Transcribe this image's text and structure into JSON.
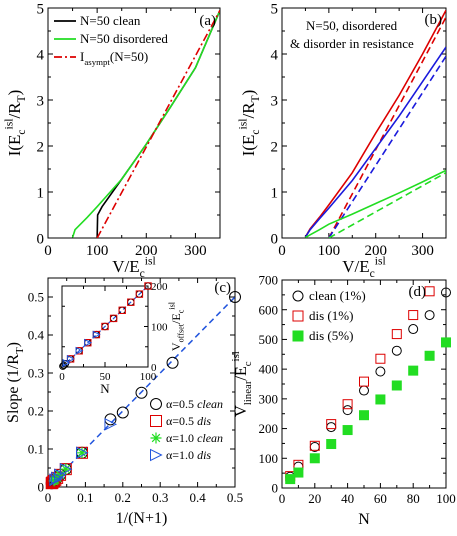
{
  "chart_data": [
    {
      "panel_label": "(a)",
      "type": "line",
      "xlabel": "V/E",
      "xlabel_sub": "c",
      "xlabel_sup": "isl",
      "ylabel": "I(E",
      "ylabel_sub": "c",
      "ylabel_sup": "isl",
      "ylabel_tail": "/R",
      "ylabel_tail_sub": "T",
      "ylabel_close": ")",
      "xlim": [
        0,
        350
      ],
      "ylim": [
        0,
        5
      ],
      "xticks": [
        0,
        100,
        200,
        300
      ],
      "yticks": [
        0,
        1,
        2,
        3,
        4,
        5
      ],
      "legend_position": "top-left",
      "legend": [
        {
          "label": "N=50 clean",
          "color": "#000000",
          "dash": "solid"
        },
        {
          "label": "N=50 disordered",
          "color": "#22dd22",
          "dash": "solid"
        },
        {
          "label": "I",
          "label_sub": "asympt",
          "label_tail": "(N=50)",
          "color": "#dd0000",
          "dash": "dashdot"
        }
      ],
      "series": [
        {
          "name": "N=50 clean",
          "color": "#000000",
          "dash": "solid",
          "x": [
            100,
            101,
            110,
            150,
            200,
            250,
            300,
            350
          ],
          "y": [
            0,
            0.5,
            0.68,
            1.28,
            2.04,
            2.86,
            3.7,
            4.95
          ]
        },
        {
          "name": "N=50 disordered",
          "color": "#22dd22",
          "dash": "solid",
          "x": [
            50,
            55,
            80,
            100,
            150,
            200,
            250,
            300,
            350
          ],
          "y": [
            0.01,
            0.18,
            0.45,
            0.68,
            1.28,
            2.04,
            2.86,
            3.7,
            4.95
          ]
        },
        {
          "name": "I",
          "color": "#dd0000",
          "dash": "dashdot",
          "x": [
            100,
            350
          ],
          "y": [
            0,
            4.95
          ]
        }
      ]
    },
    {
      "panel_label": "(b)",
      "type": "line",
      "annotation_line1": "N=50, disordered",
      "annotation_line2": "& disorder in resistance",
      "xlabel": "V/E",
      "xlabel_sub": "c",
      "xlabel_sup": "isl",
      "ylabel": "I(E",
      "ylabel_sub": "c",
      "ylabel_sup": "isl",
      "ylabel_tail": "/R",
      "ylabel_tail_sub": "T",
      "ylabel_close": ")",
      "xlim": [
        0,
        350
      ],
      "ylim": [
        0,
        5
      ],
      "xticks": [
        0,
        100,
        200,
        300
      ],
      "yticks": [
        0,
        1,
        2,
        3,
        4,
        5
      ],
      "series": [
        {
          "color": "#dd0000",
          "dash": "solid",
          "x": [
            50,
            60,
            80,
            100,
            150,
            200,
            250,
            300,
            350
          ],
          "y": [
            0.02,
            0.2,
            0.45,
            0.72,
            1.42,
            2.28,
            3.1,
            4.0,
            4.95
          ]
        },
        {
          "color": "#dd0000",
          "dash": "dashed",
          "x": [
            100,
            350
          ],
          "y": [
            0,
            4.8
          ]
        },
        {
          "color": "#1a1adc",
          "dash": "solid",
          "x": [
            50,
            60,
            80,
            100,
            150,
            200,
            250,
            300,
            350
          ],
          "y": [
            0.02,
            0.18,
            0.42,
            0.65,
            1.25,
            1.95,
            2.65,
            3.4,
            4.15
          ]
        },
        {
          "color": "#1a1adc",
          "dash": "dashed",
          "x": [
            100,
            350
          ],
          "y": [
            0,
            3.95
          ]
        },
        {
          "color": "#22dd22",
          "dash": "solid",
          "x": [
            50,
            60,
            80,
            100,
            150,
            200,
            250,
            300,
            350
          ],
          "y": [
            0.01,
            0.07,
            0.18,
            0.3,
            0.52,
            0.75,
            0.98,
            1.22,
            1.47
          ]
        },
        {
          "color": "#22dd22",
          "dash": "dashed",
          "x": [
            100,
            350
          ],
          "y": [
            0,
            1.42
          ]
        }
      ]
    },
    {
      "panel_label": "(c)",
      "type": "scatter",
      "xlabel": "1/(N+1)",
      "ylabel": "Slope (1/R",
      "ylabel_sub": "T",
      "ylabel_close": ")",
      "xlim": [
        0,
        0.5
      ],
      "ylim": [
        0,
        0.55
      ],
      "xticks": [
        0,
        0.1,
        0.2,
        0.3,
        0.4,
        0.5
      ],
      "xtick_labels": [
        "0",
        "0.1",
        "0.2",
        "0.3",
        "0.4",
        "0.5"
      ],
      "yticks": [
        0,
        0.1,
        0.2,
        0.3,
        0.4,
        0.5
      ],
      "ytick_labels": [
        "0",
        "0.1",
        "0.2",
        "0.3",
        "0.4",
        "0.5"
      ],
      "legend_position": "bottom-right",
      "fit_line": {
        "color": "#2255dd",
        "dash": "dashed",
        "x": [
          0,
          0.5
        ],
        "y": [
          0,
          0.5
        ]
      },
      "legend": [
        {
          "alpha": "α=0.5",
          "tag": "clean",
          "marker": "circle",
          "color": "#000000"
        },
        {
          "alpha": "α=0.5",
          "tag": "dis",
          "marker": "square",
          "color": "#dd0000"
        },
        {
          "alpha": "α=1.0",
          "tag": "clean",
          "marker": "star",
          "color": "#22dd22"
        },
        {
          "alpha": "α=1.0",
          "tag": "dis",
          "marker": "triangle",
          "color": "#2255dd"
        }
      ],
      "series": [
        {
          "name": "α=0.5 clean",
          "marker": "circle",
          "color": "#000000",
          "x": [
            0.5,
            0.333,
            0.25,
            0.2,
            0.167,
            0.0909,
            0.0476,
            0.0323,
            0.0244,
            0.0196,
            0.0164,
            0.0141,
            0.0123,
            0.011,
            0.0099
          ],
          "y": [
            0.5,
            0.327,
            0.248,
            0.196,
            0.178,
            0.09,
            0.047,
            0.032,
            0.024,
            0.019,
            0.016,
            0.014,
            0.012,
            0.011,
            0.01
          ]
        },
        {
          "name": "α=0.5 dis",
          "marker": "square",
          "color": "#dd0000",
          "x": [
            0.0909,
            0.0476,
            0.0323,
            0.0244,
            0.0196,
            0.0164,
            0.0141,
            0.0123,
            0.011,
            0.0099
          ],
          "y": [
            0.09,
            0.047,
            0.032,
            0.024,
            0.019,
            0.016,
            0.014,
            0.012,
            0.011,
            0.01
          ]
        },
        {
          "name": "α=1.0 clean",
          "marker": "star",
          "color": "#22dd22",
          "x": [
            0.0909,
            0.0476,
            0.0323,
            0.0244,
            0.0196,
            0.0164
          ],
          "y": [
            0.09,
            0.047,
            0.032,
            0.024,
            0.019,
            0.016
          ]
        },
        {
          "name": "α=1.0 dis",
          "marker": "triangle",
          "color": "#2255dd",
          "x": [
            0.167,
            0.0909,
            0.0476,
            0.0323,
            0.0244,
            0.0196
          ],
          "y": [
            0.165,
            0.09,
            0.047,
            0.032,
            0.024,
            0.019
          ]
        }
      ],
      "inset": {
        "xlabel": "N",
        "ylabel": "V",
        "ylabel_sub": "offset",
        "ylabel_tail": "/E",
        "ylabel_tail_sub": "c",
        "ylabel_tail_sup": "isl",
        "xlim": [
          0,
          100
        ],
        "ylim": [
          0,
          200
        ],
        "xticks": [
          0,
          50,
          100
        ],
        "yticks": [
          0,
          100,
          200
        ],
        "fit_line": {
          "color": "#2255dd",
          "dash": "dashed",
          "x": [
            0,
            100
          ],
          "y": [
            0,
            200
          ]
        },
        "series": [
          {
            "marker": "circle",
            "color": "#000000",
            "x": [
              1,
              2,
              4,
              10,
              20,
              30,
              40,
              50,
              60,
              70,
              80,
              90,
              100
            ],
            "y": [
              2,
              4,
              8,
              20,
              40,
              60,
              80,
              100,
              120,
              140,
              160,
              180,
              200
            ]
          },
          {
            "marker": "square",
            "color": "#dd0000",
            "x": [
              10,
              20,
              30,
              40,
              50,
              60,
              70,
              80,
              90,
              100
            ],
            "y": [
              20,
              40,
              60,
              80,
              100,
              120,
              140,
              160,
              180,
              200
            ]
          },
          {
            "marker": "triangle",
            "color": "#2255dd",
            "x": [
              5,
              10,
              20,
              30,
              40
            ],
            "y": [
              10,
              20,
              40,
              60,
              80
            ]
          }
        ]
      }
    },
    {
      "panel_label": "(d)",
      "type": "scatter",
      "xlabel": "N",
      "ylabel": "V",
      "ylabel_sub": "linear",
      "ylabel_tail": "/E",
      "ylabel_tail_sub": "c",
      "ylabel_tail_sup": "isl",
      "xlim": [
        0,
        100
      ],
      "ylim": [
        0,
        700
      ],
      "xticks": [
        0,
        20,
        40,
        60,
        80,
        100
      ],
      "yticks": [
        0,
        100,
        200,
        300,
        400,
        500,
        600,
        700
      ],
      "legend_position": "top-left",
      "legend": [
        {
          "label": "clean (1%)",
          "marker": "circle",
          "color": "#000000"
        },
        {
          "label": "dis (1%)",
          "marker": "square",
          "color": "#dd0000"
        },
        {
          "label": "dis (5%)",
          "marker": "filled-square",
          "color": "#22dd22"
        }
      ],
      "series": [
        {
          "name": "clean (1%)",
          "marker": "circle",
          "color": "#000000",
          "x": [
            5,
            10,
            20,
            30,
            40,
            50,
            60,
            70,
            80,
            90,
            100
          ],
          "y": [
            38,
            72,
            138,
            205,
            262,
            328,
            392,
            462,
            535,
            582,
            658
          ]
        },
        {
          "name": "dis (1%)",
          "marker": "square",
          "color": "#dd0000",
          "x": [
            5,
            10,
            20,
            30,
            40,
            50,
            60,
            70,
            80,
            90
          ],
          "y": [
            40,
            78,
            142,
            215,
            282,
            358,
            435,
            518,
            582,
            662
          ]
        },
        {
          "name": "dis (5%)",
          "marker": "filled-square",
          "color": "#22dd22",
          "x": [
            5,
            10,
            20,
            30,
            40,
            50,
            60,
            70,
            80,
            90,
            100
          ],
          "y": [
            30,
            52,
            100,
            148,
            195,
            245,
            298,
            345,
            395,
            445,
            490
          ]
        }
      ]
    }
  ]
}
